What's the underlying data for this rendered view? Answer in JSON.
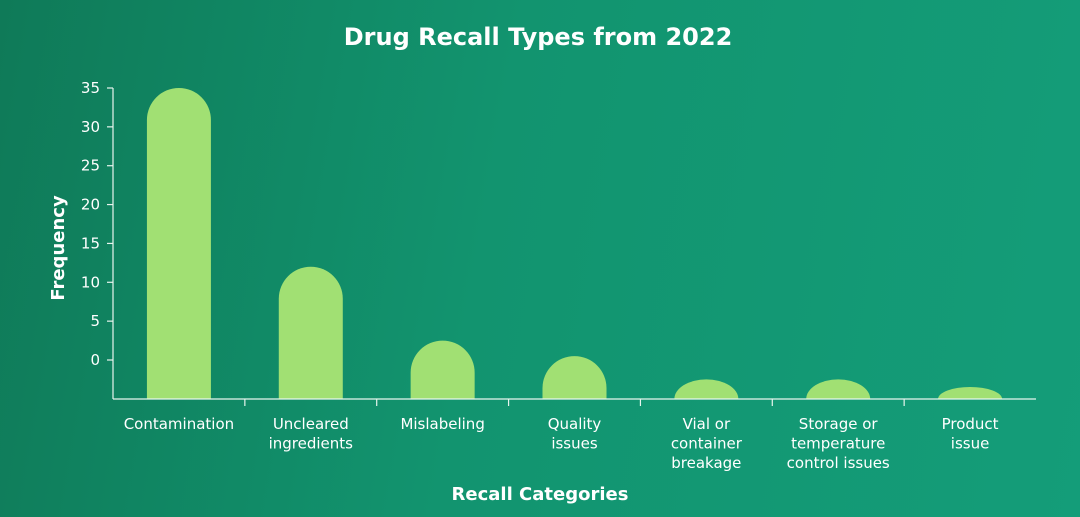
{
  "chart_data": {
    "type": "bar",
    "title": "Drug Recall Types from 2022",
    "xlabel": "Recall Categories",
    "ylabel": "Frequency",
    "categories": [
      [
        "Contamination"
      ],
      [
        "Uncleared",
        "ingredients"
      ],
      [
        "Mislabeling"
      ],
      [
        "Quality",
        "issues"
      ],
      [
        "Vial or",
        "container",
        "breakage"
      ],
      [
        "Storage or",
        "temperature",
        "control issues"
      ],
      [
        "Product",
        "issue"
      ]
    ],
    "values": [
      35,
      12,
      2.5,
      0.5,
      -2.5,
      -2.5,
      -3.5
    ],
    "yticks": [
      0,
      5,
      10,
      15,
      20,
      25,
      30,
      35
    ],
    "ylim": [
      -5,
      35
    ],
    "grid": false,
    "bar_color": "#a1e073"
  }
}
